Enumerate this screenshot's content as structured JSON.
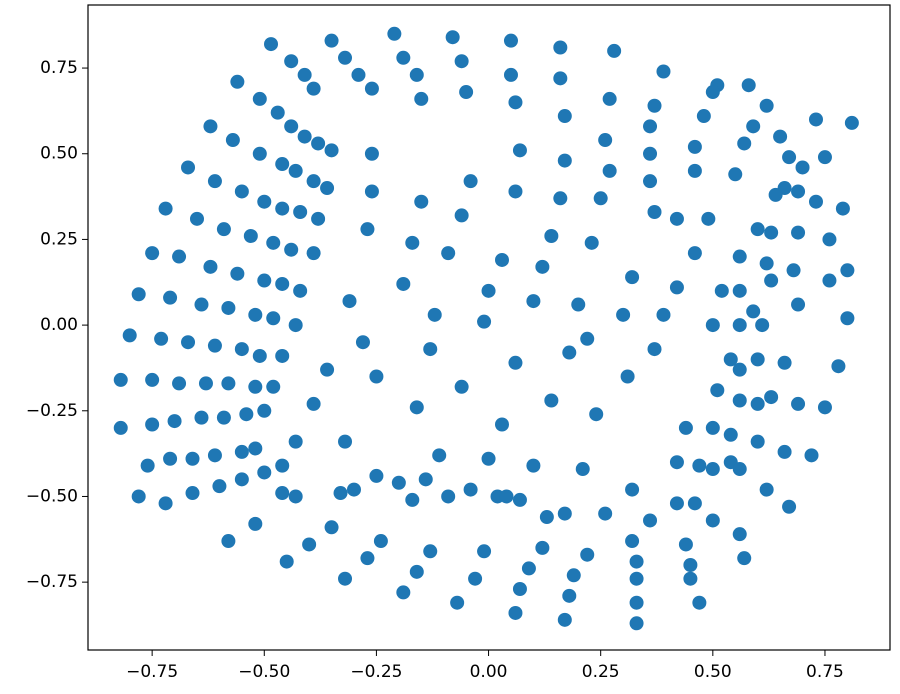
{
  "chart_data": {
    "type": "scatter",
    "color": "#1f77b4",
    "x": [
      -0.485,
      -0.44,
      -0.41,
      -0.39,
      -0.35,
      -0.32,
      -0.29,
      -0.26,
      -0.21,
      -0.19,
      -0.16,
      -0.15,
      -0.08,
      -0.06,
      -0.05,
      0.05,
      0.05,
      0.06,
      0.07,
      0.16,
      0.16,
      0.17,
      0.17,
      0.28,
      0.27,
      0.26,
      0.27,
      0.39,
      0.37,
      0.36,
      0.36,
      0.36,
      0.51,
      0.5,
      0.48,
      0.46,
      0.46,
      0.58,
      0.62,
      0.59,
      0.57,
      0.55,
      0.65,
      0.67,
      0.73,
      0.81,
      0.75,
      0.73,
      0.7,
      0.69,
      0.66,
      0.64,
      0.6,
      0.63,
      0.69,
      0.76,
      0.79,
      0.8,
      -0.56,
      -0.51,
      -0.47,
      -0.44,
      -0.41,
      -0.38,
      -0.35,
      -0.62,
      -0.57,
      -0.51,
      -0.46,
      -0.43,
      -0.39,
      -0.36,
      -0.67,
      -0.61,
      -0.55,
      -0.5,
      -0.46,
      -0.42,
      -0.38,
      -0.72,
      -0.65,
      -0.59,
      -0.53,
      -0.48,
      -0.44,
      -0.39,
      -0.75,
      -0.69,
      -0.62,
      -0.56,
      -0.5,
      -0.46,
      -0.42,
      -0.78,
      -0.71,
      -0.64,
      -0.58,
      -0.52,
      -0.48,
      -0.43,
      -0.8,
      -0.73,
      -0.67,
      -0.61,
      -0.55,
      -0.51,
      -0.46,
      -0.82,
      -0.75,
      -0.69,
      -0.63,
      -0.58,
      -0.52,
      -0.48,
      -0.82,
      -0.75,
      -0.7,
      -0.64,
      -0.59,
      -0.54,
      -0.5,
      -0.76,
      -0.71,
      -0.66,
      -0.61,
      -0.55,
      -0.52,
      -0.43,
      -0.78,
      -0.72,
      -0.66,
      -0.6,
      -0.55,
      -0.5,
      -0.46,
      -0.58,
      -0.52,
      -0.46,
      -0.43,
      -0.45,
      -0.4,
      -0.35,
      -0.32,
      -0.27,
      -0.24,
      -0.19,
      -0.16,
      -0.13,
      -0.07,
      -0.03,
      -0.01,
      0.06,
      0.07,
      0.09,
      0.12,
      0.17,
      0.18,
      0.19,
      0.22,
      0.33,
      0.33,
      0.33,
      0.33,
      0.32,
      0.47,
      0.45,
      0.45,
      0.44,
      0.57,
      0.56,
      0.5,
      -0.33,
      -0.3,
      -0.25,
      -0.2,
      -0.14,
      -0.17,
      -0.09,
      -0.04,
      0.02,
      0.04,
      0.07,
      0.13,
      0.17,
      0.26,
      0.36,
      0.42,
      0.46,
      0.62,
      0.67,
      -0.16,
      -0.06,
      0.03,
      0.06,
      0.14,
      -0.11,
      0.0,
      0.1,
      0.24,
      0.21,
      0.32,
      0.31,
      0.18,
      -0.01,
      -0.13,
      -0.25,
      -0.28,
      -0.36,
      -0.39,
      -0.32,
      -0.12,
      0.0,
      0.1,
      0.2,
      0.3,
      0.39,
      0.22,
      0.37,
      -0.09,
      0.03,
      0.12,
      0.23,
      0.32,
      0.42,
      0.46,
      -0.19,
      -0.17,
      -0.27,
      -0.31,
      -0.15,
      -0.06,
      0.06,
      0.14,
      0.16,
      0.25,
      0.37,
      0.42,
      0.49,
      -0.26,
      -0.26,
      -0.04,
      0.52,
      0.56,
      0.59,
      0.56,
      0.61,
      0.5,
      0.54,
      0.6,
      0.66,
      0.56,
      0.51,
      0.56,
      0.6,
      0.63,
      0.69,
      0.44,
      0.5,
      0.54,
      0.6,
      0.66,
      0.72,
      0.75,
      0.78,
      0.8,
      0.76,
      0.69,
      0.63,
      0.68,
      0.56,
      0.62,
      0.42,
      0.47,
      0.5,
      0.54,
      0.56
    ],
    "values": [
      0.82,
      0.77,
      0.73,
      0.69,
      0.83,
      0.78,
      0.73,
      0.69,
      0.85,
      0.78,
      0.73,
      0.66,
      0.84,
      0.77,
      0.68,
      0.83,
      0.73,
      0.65,
      0.51,
      0.81,
      0.72,
      0.61,
      0.48,
      0.8,
      0.66,
      0.54,
      0.45,
      0.74,
      0.64,
      0.58,
      0.5,
      0.42,
      0.7,
      0.68,
      0.61,
      0.52,
      0.45,
      0.7,
      0.64,
      0.58,
      0.53,
      0.44,
      0.55,
      0.49,
      0.6,
      0.59,
      0.49,
      0.36,
      0.46,
      0.39,
      0.4,
      0.38,
      0.28,
      0.27,
      0.27,
      0.25,
      0.34,
      0.16,
      0.71,
      0.66,
      0.62,
      0.58,
      0.55,
      0.53,
      0.51,
      0.58,
      0.54,
      0.5,
      0.47,
      0.45,
      0.42,
      0.4,
      0.46,
      0.42,
      0.39,
      0.36,
      0.34,
      0.33,
      0.31,
      0.34,
      0.31,
      0.28,
      0.26,
      0.24,
      0.22,
      0.21,
      0.21,
      0.2,
      0.17,
      0.15,
      0.13,
      0.12,
      0.1,
      0.09,
      0.08,
      0.06,
      0.05,
      0.03,
      0.02,
      0.0,
      -0.03,
      -0.04,
      -0.05,
      -0.06,
      -0.07,
      -0.09,
      -0.09,
      -0.16,
      -0.16,
      -0.17,
      -0.17,
      -0.17,
      -0.18,
      -0.18,
      -0.3,
      -0.29,
      -0.28,
      -0.27,
      -0.27,
      -0.26,
      -0.25,
      -0.41,
      -0.39,
      -0.39,
      -0.38,
      -0.37,
      -0.36,
      -0.34,
      -0.5,
      -0.52,
      -0.49,
      -0.47,
      -0.45,
      -0.43,
      -0.41,
      -0.63,
      -0.58,
      -0.49,
      -0.5,
      -0.69,
      -0.64,
      -0.59,
      -0.74,
      -0.68,
      -0.63,
      -0.78,
      -0.72,
      -0.66,
      -0.81,
      -0.74,
      -0.66,
      -0.84,
      -0.77,
      -0.71,
      -0.65,
      -0.86,
      -0.79,
      -0.73,
      -0.67,
      -0.87,
      -0.81,
      -0.74,
      -0.69,
      -0.63,
      -0.81,
      -0.74,
      -0.7,
      -0.64,
      -0.68,
      -0.61,
      -0.57,
      -0.49,
      -0.48,
      -0.44,
      -0.46,
      -0.45,
      -0.51,
      -0.5,
      -0.48,
      -0.5,
      -0.5,
      -0.51,
      -0.56,
      -0.55,
      -0.55,
      -0.57,
      -0.52,
      -0.52,
      -0.48,
      -0.53,
      -0.24,
      -0.18,
      -0.29,
      -0.11,
      -0.22,
      -0.38,
      -0.39,
      -0.41,
      -0.26,
      -0.42,
      -0.48,
      -0.15,
      -0.08,
      0.01,
      -0.07,
      -0.15,
      -0.05,
      -0.13,
      -0.23,
      -0.34,
      0.03,
      0.1,
      0.07,
      0.06,
      0.03,
      0.03,
      -0.04,
      -0.07,
      0.21,
      0.19,
      0.17,
      0.24,
      0.14,
      0.11,
      0.21,
      0.12,
      0.24,
      0.28,
      0.07,
      0.36,
      0.32,
      0.39,
      0.26,
      0.37,
      0.37,
      0.33,
      0.31,
      0.31,
      0.39,
      0.5,
      0.42,
      0.1,
      0.1,
      0.04,
      0.0,
      0.0,
      0.0,
      -0.1,
      -0.1,
      -0.11,
      -0.13,
      -0.19,
      -0.22,
      -0.23,
      -0.21,
      -0.23,
      -0.3,
      -0.3,
      -0.32,
      -0.34,
      -0.37,
      -0.38,
      -0.24,
      -0.12,
      0.02,
      0.13,
      0.06,
      0.13,
      0.16,
      0.2,
      0.18,
      -0.4,
      -0.41,
      -0.42,
      -0.4,
      -0.42
    ],
    "xlim": [
      -0.893,
      0.895
    ],
    "ylim": [
      -0.948,
      0.934
    ],
    "xticks": [
      {
        "value": -0.75,
        "label": "−0.75"
      },
      {
        "value": -0.5,
        "label": "−0.50"
      },
      {
        "value": -0.25,
        "label": "−0.25"
      },
      {
        "value": 0,
        "label": "0.00"
      },
      {
        "value": 0.25,
        "label": "0.25"
      },
      {
        "value": 0.5,
        "label": "0.50"
      },
      {
        "value": 0.75,
        "label": "0.75"
      }
    ],
    "yticks": [
      {
        "value": -0.75,
        "label": "−0.75"
      },
      {
        "value": -0.5,
        "label": "−0.50"
      },
      {
        "value": -0.25,
        "label": "−0.25"
      },
      {
        "value": 0,
        "label": "0.00"
      },
      {
        "value": 0.25,
        "label": "0.25"
      },
      {
        "value": 0.5,
        "label": "0.50"
      },
      {
        "value": 0.75,
        "label": "0.75"
      }
    ]
  }
}
